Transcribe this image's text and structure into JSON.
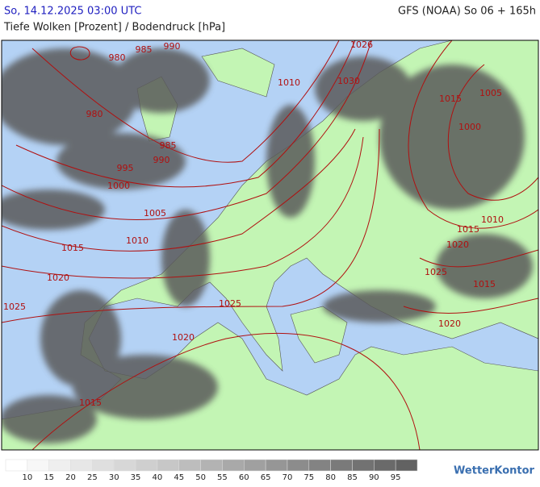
{
  "header": {
    "date": "So, 14.12.2025 03:00 UTC",
    "model": "GFS (NOAA) So 06 + 165h",
    "title": "Tiefe Wolken [Prozent] / Bodendruck [hPa]"
  },
  "map": {
    "isobar_labels": [
      990,
      985,
      980,
      1026,
      1010,
      1030,
      1015,
      1005,
      980,
      1000,
      985,
      990,
      995,
      1000,
      1005,
      1010,
      1015,
      1010,
      1020,
      1015,
      1025,
      1020,
      1015,
      1025,
      1025,
      1020,
      1020,
      1015
    ],
    "isobar_color": "#b01010"
  },
  "legend": {
    "levels": [
      10,
      15,
      20,
      25,
      30,
      35,
      40,
      45,
      50,
      55,
      60,
      65,
      70,
      75,
      80,
      85,
      90,
      95
    ],
    "colors": [
      "#ffffff",
      "#f7f7f7",
      "#efefef",
      "#e7e7e7",
      "#dfdfdf",
      "#d7d7d7",
      "#cfcfcf",
      "#c7c7c7",
      "#bdbdbd",
      "#b3b3b3",
      "#a9a9a9",
      "#a0a0a0",
      "#969696",
      "#8c8c8c",
      "#838383",
      "#7a7a7a",
      "#727272",
      "#6a6a6a",
      "#626262"
    ]
  },
  "logo": "WetterKontor"
}
